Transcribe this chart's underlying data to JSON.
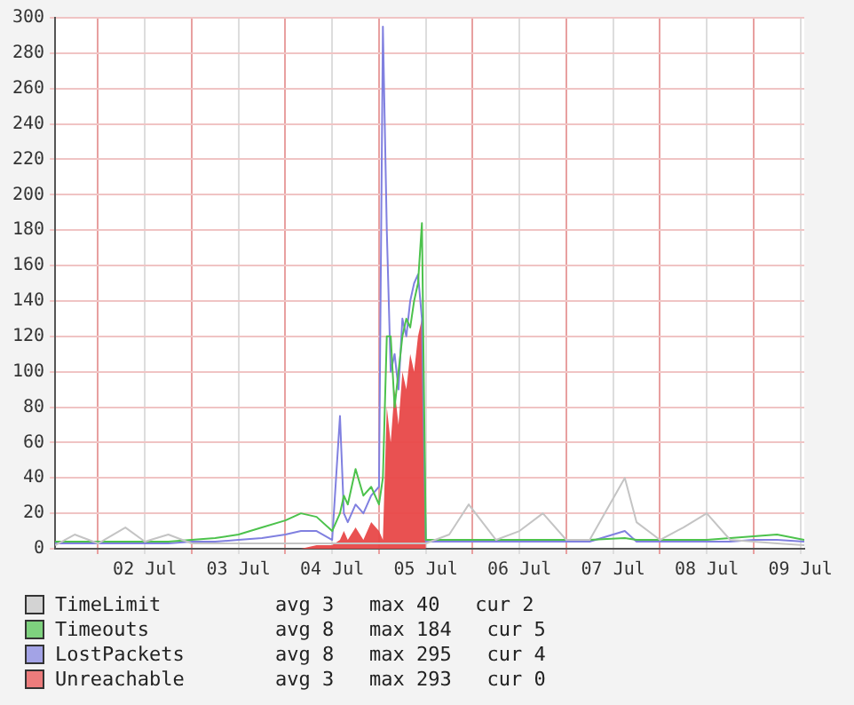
{
  "chart_data": {
    "type": "line",
    "x": [
      "--07-01T13:00",
      "--07-01T18:00",
      "--07-02T00:00",
      "--07-02T07:00",
      "--07-02T12:00",
      "--07-02T18:00",
      "--07-03T00:00",
      "--07-03T06:00",
      "--07-03T12:00",
      "--07-03T18:00",
      "--07-04T00:00",
      "--07-04T04:00",
      "--07-04T08:00",
      "--07-04T12:00",
      "--07-04T14:00",
      "--07-04T15:00",
      "--07-04T16:00",
      "--07-04T18:00",
      "--07-04T20:00",
      "--07-04T22:00",
      "--07-05T00:00",
      "--07-05T01:00",
      "--07-05T02:00",
      "--07-05T03:00",
      "--07-05T04:00",
      "--07-05T05:00",
      "--07-05T06:00",
      "--07-05T07:00",
      "--07-05T08:00",
      "--07-05T09:00",
      "--07-05T10:00",
      "--07-05T11:00",
      "--07-05T12:00",
      "--07-05T18:00",
      "--07-05T23:00",
      "--07-06T06:00",
      "--07-06T12:00",
      "--07-06T18:00",
      "--07-07T00:00",
      "--07-07T06:00",
      "--07-07T15:00",
      "--07-07T18:00",
      "--07-08T00:00",
      "--07-08T06:00",
      "--07-08T12:00",
      "--07-08T18:00",
      "--07-09T00:00",
      "--07-09T06:00",
      "--07-09T13:00"
    ],
    "series": [
      {
        "name": "TimeLimit",
        "color": "#c4c4c4",
        "values": [
          2,
          8,
          3,
          12,
          4,
          8,
          3,
          3,
          3,
          3,
          3,
          3,
          3,
          3,
          3,
          3,
          3,
          3,
          3,
          3,
          3,
          3,
          3,
          3,
          3,
          3,
          3,
          3,
          3,
          3,
          3,
          3,
          3,
          8,
          25,
          5,
          10,
          20,
          5,
          5,
          40,
          15,
          5,
          12,
          20,
          5,
          4,
          3,
          2
        ]
      },
      {
        "name": "Timeouts",
        "color": "#4cc24c",
        "values": [
          4,
          4,
          4,
          4,
          4,
          4,
          5,
          6,
          8,
          12,
          16,
          20,
          18,
          10,
          20,
          30,
          25,
          45,
          30,
          35,
          25,
          40,
          120,
          120,
          80,
          100,
          120,
          130,
          125,
          140,
          150,
          184,
          5,
          5,
          5,
          5,
          5,
          5,
          5,
          5,
          6,
          5,
          5,
          5,
          5,
          6,
          7,
          8,
          5
        ]
      },
      {
        "name": "LostPackets",
        "color": "#8080e0",
        "values": [
          3,
          3,
          3,
          3,
          3,
          3,
          4,
          4,
          5,
          6,
          8,
          10,
          10,
          5,
          75,
          20,
          15,
          25,
          20,
          30,
          35,
          295,
          180,
          100,
          110,
          90,
          130,
          120,
          140,
          150,
          155,
          130,
          4,
          4,
          4,
          4,
          4,
          4,
          4,
          4,
          10,
          4,
          4,
          4,
          4,
          4,
          5,
          5,
          4
        ]
      },
      {
        "name": "Unreachable",
        "color": "#e84848",
        "type": "area",
        "values": [
          0,
          0,
          0,
          0,
          0,
          0,
          0,
          0,
          0,
          0,
          0,
          0,
          2,
          2,
          5,
          10,
          5,
          12,
          5,
          15,
          10,
          5,
          80,
          60,
          90,
          70,
          100,
          90,
          110,
          100,
          120,
          130,
          0,
          0,
          0,
          0,
          0,
          0,
          0,
          0,
          0,
          0,
          0,
          0,
          0,
          0,
          0,
          0,
          0
        ]
      }
    ],
    "xlim": [
      "--07-01T13:00",
      "--07-09T13:00"
    ],
    "xticks": [
      {
        "value": "--07-02T00:00",
        "label": null
      },
      {
        "value": "--07-02T12:00",
        "label": "02 Jul"
      },
      {
        "value": "--07-03T00:00",
        "label": null
      },
      {
        "value": "--07-03T12:00",
        "label": "03 Jul"
      },
      {
        "value": "--07-04T00:00",
        "label": null
      },
      {
        "value": "--07-04T12:00",
        "label": "04 Jul"
      },
      {
        "value": "--07-05T00:00",
        "label": null
      },
      {
        "value": "--07-05T12:00",
        "label": "05 Jul"
      },
      {
        "value": "--07-06T00:00",
        "label": null
      },
      {
        "value": "--07-06T12:00",
        "label": "06 Jul"
      },
      {
        "value": "--07-07T00:00",
        "label": null
      },
      {
        "value": "--07-07T12:00",
        "label": "07 Jul"
      },
      {
        "value": "--07-08T00:00",
        "label": null
      },
      {
        "value": "--07-08T12:00",
        "label": "08 Jul"
      },
      {
        "value": "--07-09T00:00",
        "label": null
      },
      {
        "value": "--07-09T12:00",
        "label": "09 Jul"
      }
    ],
    "ylim": [
      0,
      300
    ],
    "yticks": [
      0,
      20,
      40,
      60,
      80,
      100,
      120,
      140,
      160,
      180,
      200,
      220,
      240,
      260,
      280,
      300
    ],
    "grid": true,
    "legend": "bottom",
    "marker": "none",
    "annotations": [
      "avg 3   max 40   cur 2",
      "avg 8   max 184   cur 5",
      "avg 8   max 295   cur 4",
      "avg 3   max 293   cur 0"
    ]
  }
}
